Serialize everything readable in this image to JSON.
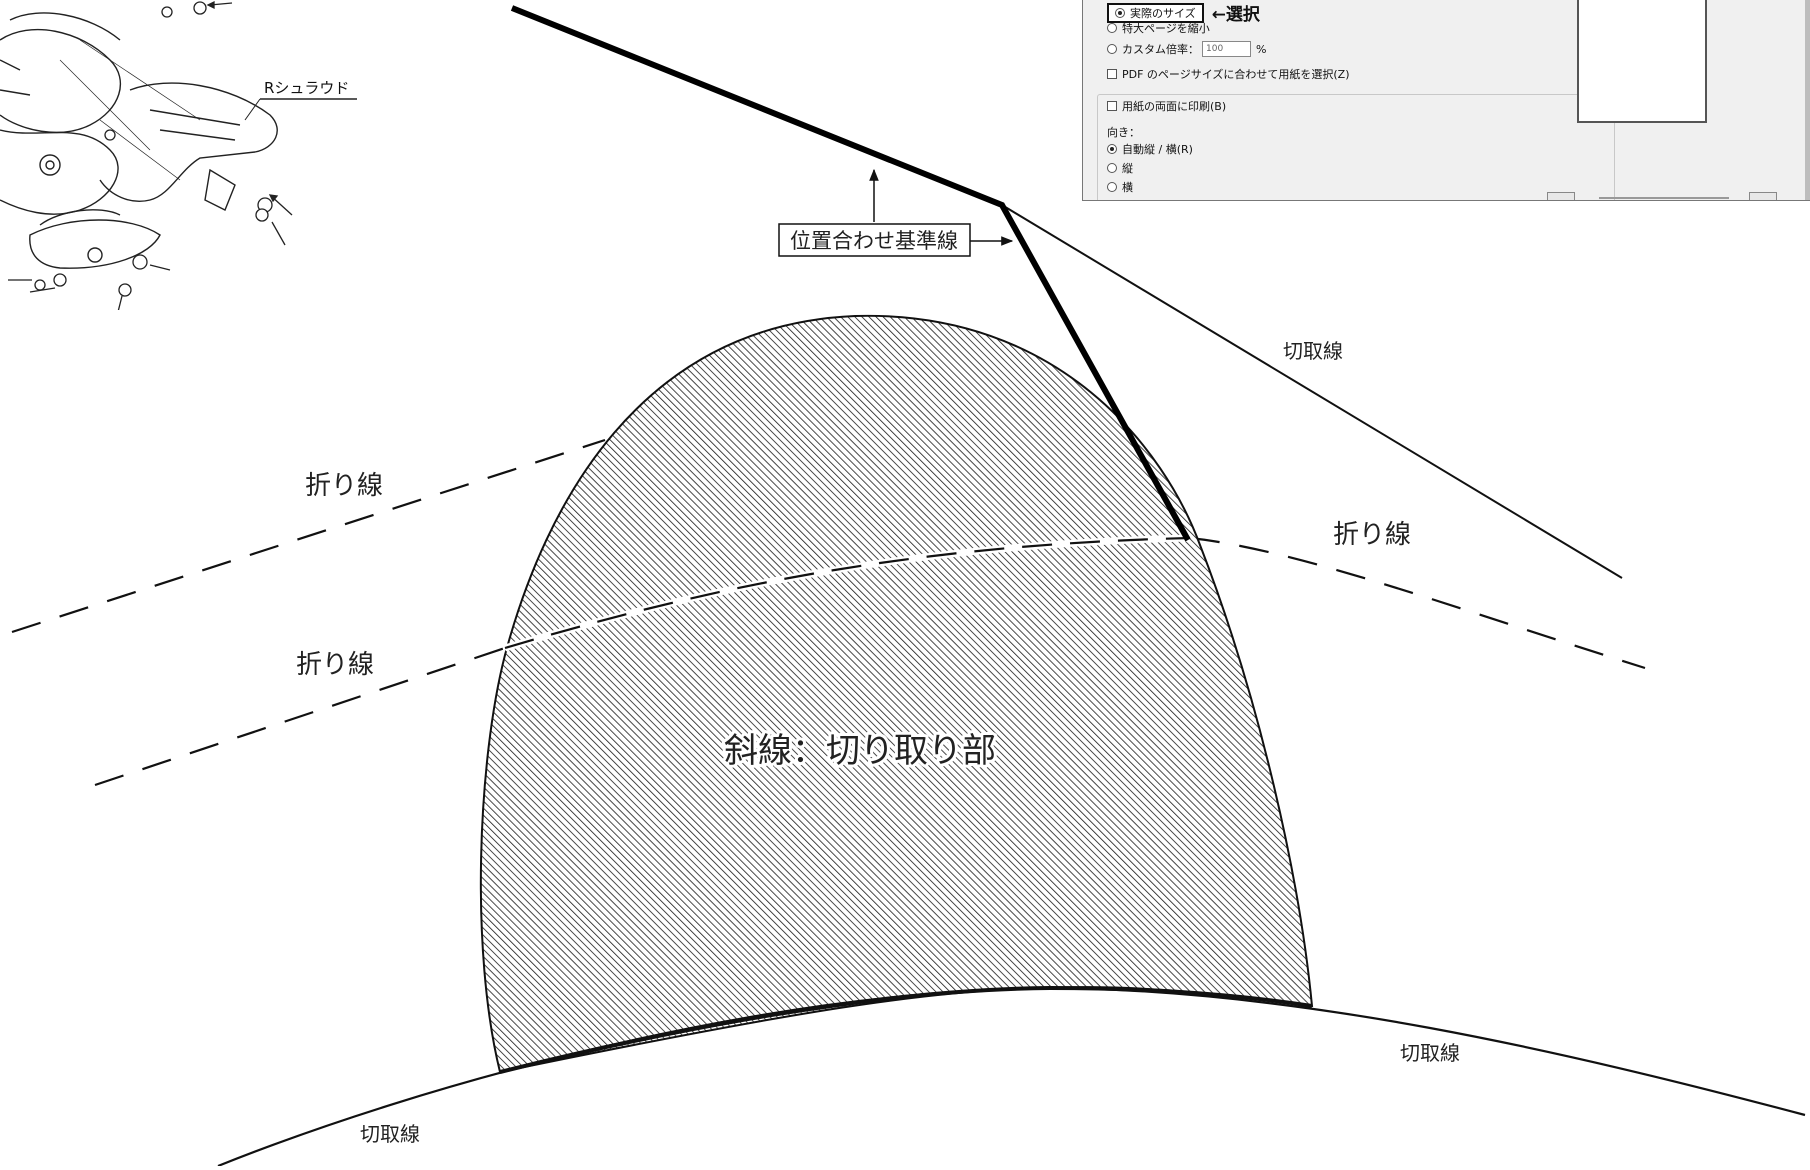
{
  "parts_drawing": {
    "part_label": "Rシュラウド"
  },
  "print_dialog": {
    "options": [
      {
        "label": "実際のサイズ",
        "selected": true
      },
      {
        "label": "特大ページを縮小",
        "selected": false
      },
      {
        "label": "カスタム倍率：",
        "selected": false
      }
    ],
    "select_note": "←選択",
    "custom_scale_value": "100",
    "custom_scale_unit": "%",
    "pdf_page_size_option": "PDF のページサイズに合わせて用紙を選択(Z)",
    "duplex_option": "用紙の両面に印刷(B)",
    "orientation_label": "向き：",
    "orientation_options": [
      {
        "label": "自動縦 / 横(R)",
        "selected": true
      },
      {
        "label": "縦",
        "selected": false
      },
      {
        "label": "横",
        "selected": false
      }
    ]
  },
  "diagram": {
    "alignment_line_label": "位置合わせ基準線",
    "cut_line_label": "切取線",
    "fold_line_label": "折り線",
    "hatched_area_label": "斜線：切り取り部"
  }
}
